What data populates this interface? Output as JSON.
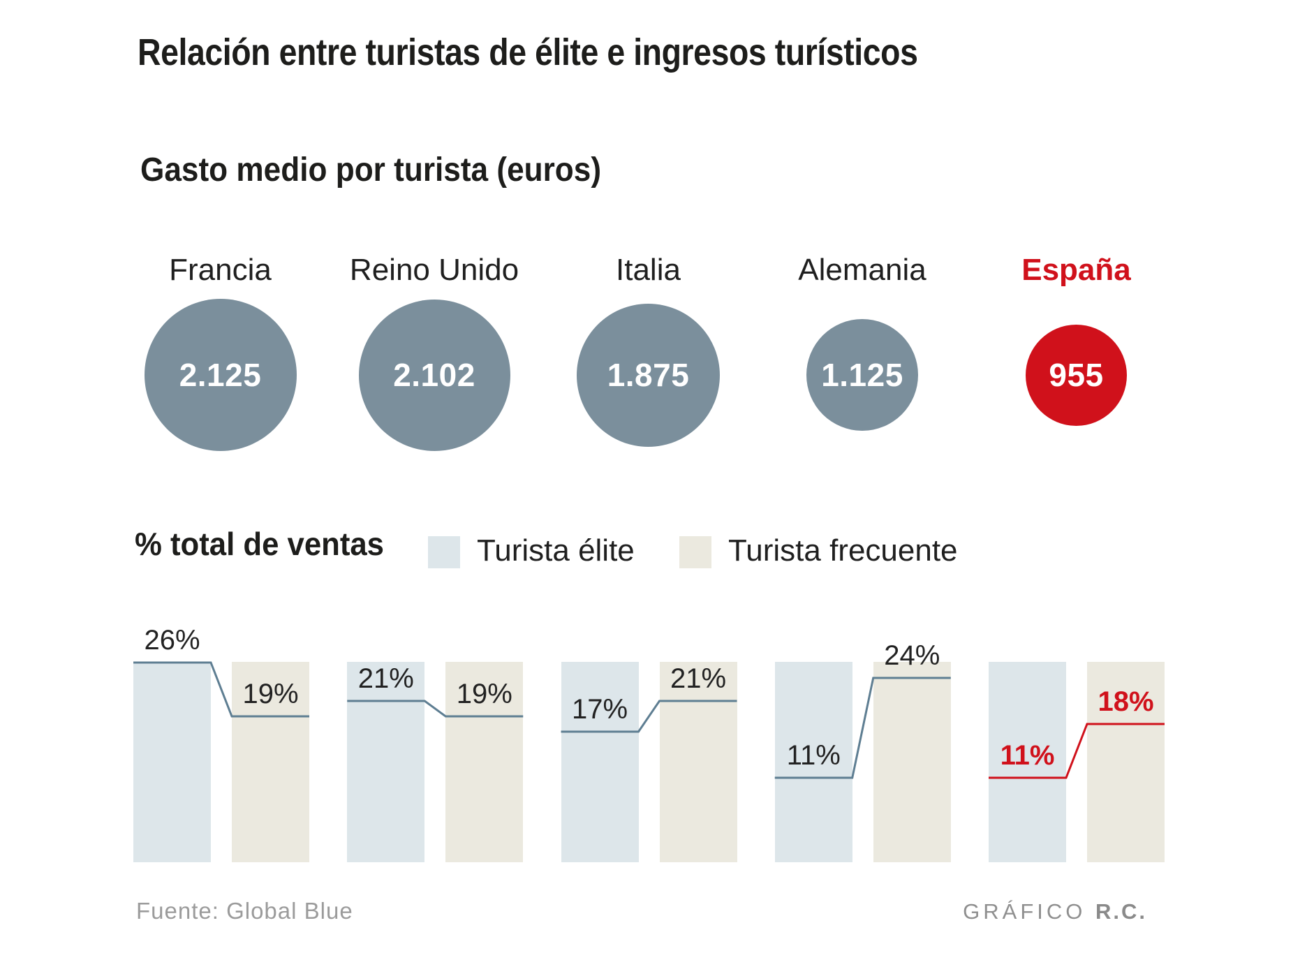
{
  "title": "Relación entre turistas de élite e ingresos turísticos",
  "bubbles_section": {
    "subtitle": "Gasto medio por turista (euros)",
    "countries": [
      {
        "name": "Francia",
        "value": "2.125",
        "diameter": 218,
        "highlight": false
      },
      {
        "name": "Reino Unido",
        "value": "2.102",
        "diameter": 217,
        "highlight": false
      },
      {
        "name": "Italia",
        "value": "1.875",
        "diameter": 205,
        "highlight": false
      },
      {
        "name": "Alemania",
        "value": "1.125",
        "diameter": 160,
        "highlight": false
      },
      {
        "name": "España",
        "value": "955",
        "diameter": 145,
        "highlight": true
      }
    ]
  },
  "bars_section": {
    "label": "% total de ventas",
    "legend": [
      {
        "label": "Turista élite",
        "swatch": "#dde6ea"
      },
      {
        "label": "Turista frecuente",
        "swatch": "#ebe9df"
      }
    ],
    "pairs": [
      {
        "country": "Francia",
        "elite": 26,
        "frecuente": 19,
        "highlight": false
      },
      {
        "country": "Reino Unido",
        "elite": 21,
        "frecuente": 19,
        "highlight": false
      },
      {
        "country": "Italia",
        "elite": 17,
        "frecuente": 21,
        "highlight": false
      },
      {
        "country": "Alemania",
        "elite": 11,
        "frecuente": 24,
        "highlight": false
      },
      {
        "country": "España",
        "elite": 11,
        "frecuente": 18,
        "highlight": true
      }
    ]
  },
  "footer": {
    "source": "Fuente: Global Blue",
    "credit_prefix": "GRÁFICO",
    "credit_bold": "R.C."
  },
  "colors": {
    "bubble": "#7b8f9c",
    "highlight": "#d0111b",
    "elite_bar": "#dde6ea",
    "frequent_bar": "#ebe9df",
    "step_line": "#5e7e92",
    "title_text": "#1d1d1b",
    "muted_text": "#9b9b9b"
  },
  "chart_data": [
    {
      "type": "bubble",
      "title": "Gasto medio por turista (euros)",
      "categories": [
        "Francia",
        "Reino Unido",
        "Italia",
        "Alemania",
        "España"
      ],
      "values": [
        2125,
        2102,
        1875,
        1125,
        955
      ],
      "unit": "euros por turista",
      "highlight": "España",
      "notes": "bubble area proportional to value; values shown with dot thousands separator"
    },
    {
      "type": "bar",
      "title": "% total de ventas",
      "categories": [
        "Francia",
        "Reino Unido",
        "Italia",
        "Alemania",
        "España"
      ],
      "series": [
        {
          "name": "Turista élite",
          "values": [
            26,
            21,
            17,
            11,
            11
          ]
        },
        {
          "name": "Turista frecuente",
          "values": [
            19,
            19,
            21,
            24,
            18
          ]
        }
      ],
      "unit": "%",
      "ylim": [
        0,
        26
      ],
      "highlight": "España",
      "legend_position": "top",
      "grid": false,
      "notes": "uniform-height background columns with a stepped value line across each pair; España drawn in red"
    }
  ]
}
